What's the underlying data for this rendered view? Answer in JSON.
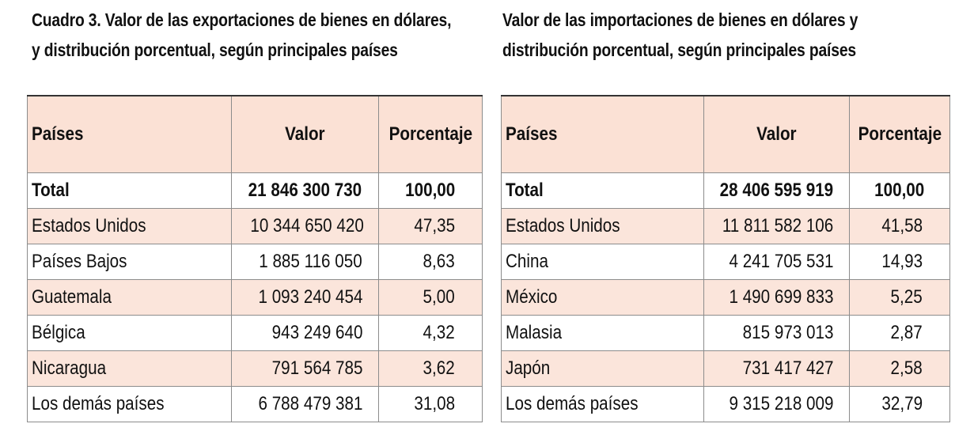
{
  "exports": {
    "title_line1": "Cuadro 3. Valor de las exportaciones de bienes en dólares,",
    "title_line2": "y distribución porcentual, según principales países",
    "headers": {
      "country": "Países",
      "value": "Valor",
      "percent": "Porcentaje"
    },
    "total": {
      "country": "Total",
      "value": "21 846 300 730",
      "percent": "100,00"
    },
    "rows": [
      {
        "country": "Estados Unidos",
        "value": "10 344 650 420",
        "percent": "47,35"
      },
      {
        "country": "Países Bajos",
        "value": "1 885 116 050",
        "percent": "8,63"
      },
      {
        "country": "Guatemala",
        "value": "1 093 240 454",
        "percent": "5,00"
      },
      {
        "country": "Bélgica",
        "value": "943 249 640",
        "percent": "4,32"
      },
      {
        "country": "Nicaragua",
        "value": "791 564 785",
        "percent": "3,62"
      },
      {
        "country": "Los demás países",
        "value": "6 788 479 381",
        "percent": "31,08"
      }
    ]
  },
  "imports": {
    "title_line1": "Valor de las importaciones de bienes en dólares y",
    "title_line2": "distribución porcentual, según principales países",
    "headers": {
      "country": "Países",
      "value": "Valor",
      "percent": "Porcentaje"
    },
    "total": {
      "country": "Total",
      "value": "28 406 595 919",
      "percent": "100,00"
    },
    "rows": [
      {
        "country": "Estados Unidos",
        "value": "11 811 582 106",
        "percent": "41,58"
      },
      {
        "country": "China",
        "value": "4 241 705 531",
        "percent": "14,93"
      },
      {
        "country": "México",
        "value": "1 490 699 833",
        "percent": "5,25"
      },
      {
        "country": "Malasia",
        "value": "815 973 013",
        "percent": "2,87"
      },
      {
        "country": "Japón",
        "value": "731 417 427",
        "percent": "2,58"
      },
      {
        "country": "Los demás países",
        "value": "9 315 218 009",
        "percent": "32,79"
      }
    ]
  },
  "colors": {
    "header_bg": "#fbe1d5",
    "shaded_row_bg": "#fbe5db",
    "border": "#8c8c8c"
  }
}
